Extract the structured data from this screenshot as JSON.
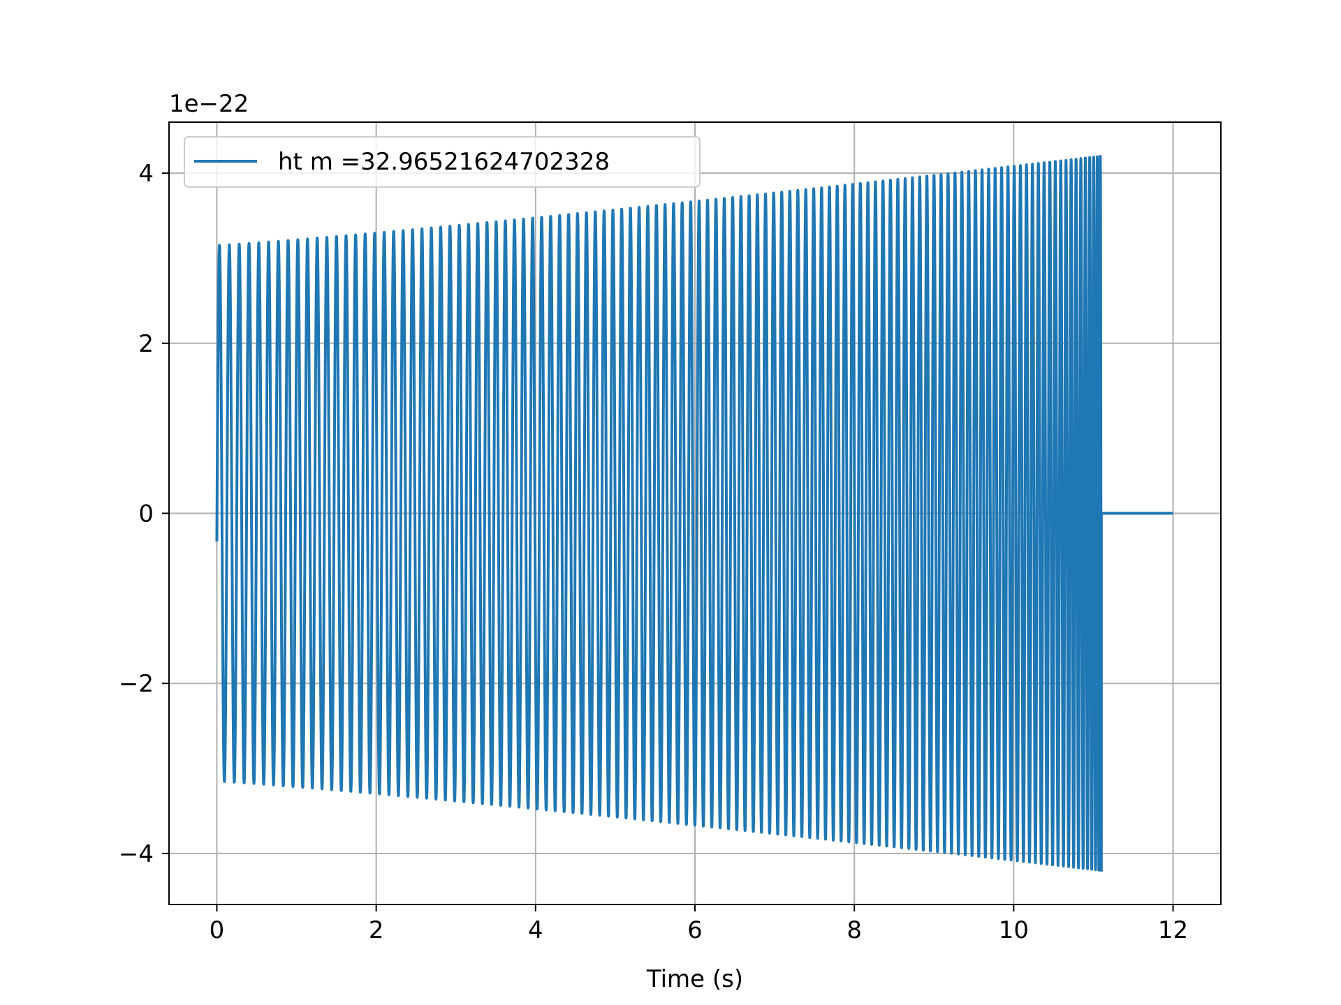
{
  "chart_data": {
    "type": "line",
    "title": "",
    "xlabel": "Time (s)",
    "ylabel": "",
    "y_offset_text": "1e−22",
    "xlim": [
      -0.6,
      12.6
    ],
    "ylim": [
      -4.6,
      4.6
    ],
    "grid": true,
    "legend_position": "upper-left",
    "x_ticks": [
      0,
      2,
      4,
      6,
      8,
      10,
      12
    ],
    "x_tick_labels": [
      "0",
      "2",
      "4",
      "6",
      "8",
      "10",
      "12"
    ],
    "y_ticks": [
      -4,
      -2,
      0,
      2,
      4
    ],
    "y_tick_labels": [
      "−4",
      "−2",
      "0",
      "2",
      "4"
    ],
    "series": [
      {
        "name": "ht m =32.96521624702328",
        "color": "#1f77b4",
        "description": "chirp waveform: oscillation beginning at t=0 with amplitude rising from about 3.15 to 4.2 and frequency increasing, ending at t≈11.1 s, then flat at 0 until t=12",
        "start_value": -0.33,
        "t_start": 0,
        "t_merge": 11.1,
        "t_end": 12,
        "amplitude_start": 3.15,
        "amplitude_end": 4.2,
        "final_value": 0,
        "cycles": 112
      }
    ]
  }
}
